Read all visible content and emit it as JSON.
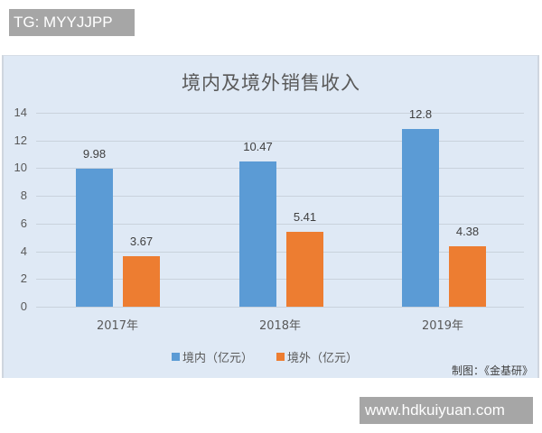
{
  "watermarks": {
    "top": "TG: MYYJJPP",
    "bottom": "www.hdkuiyuan.com"
  },
  "source_note": "制图：《金基研》",
  "colors": {
    "domestic": "#5b9bd5",
    "overseas": "#ed7d31",
    "panel_bg": "#dfe9f5"
  },
  "chart_data": {
    "type": "bar",
    "title": "境内及境外销售收入",
    "categories": [
      "2017年",
      "2018年",
      "2019年"
    ],
    "series": [
      {
        "name": "境内（亿元）",
        "values": [
          9.98,
          10.47,
          12.8
        ],
        "labels": [
          "9.98",
          "10.47",
          "12.8"
        ]
      },
      {
        "name": "境外（亿元）",
        "values": [
          3.67,
          5.41,
          4.38
        ],
        "labels": [
          "3.67",
          "5.41",
          "4.38"
        ]
      }
    ],
    "xlabel": "",
    "ylabel": "",
    "ylim": [
      0,
      14
    ],
    "yticks": [
      "0",
      "2",
      "4",
      "6",
      "8",
      "10",
      "12",
      "14"
    ],
    "grid": true,
    "legend_position": "bottom"
  }
}
